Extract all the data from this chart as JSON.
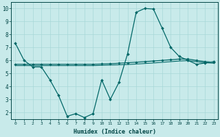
{
  "x": [
    0,
    1,
    2,
    3,
    4,
    5,
    6,
    7,
    8,
    9,
    10,
    11,
    12,
    13,
    14,
    15,
    16,
    17,
    18,
    19,
    20,
    21,
    22,
    23
  ],
  "y_main": [
    7.3,
    6.0,
    5.5,
    5.5,
    4.5,
    3.3,
    1.7,
    1.9,
    1.6,
    1.9,
    4.5,
    3.0,
    4.3,
    6.5,
    9.7,
    10.0,
    9.95,
    8.5,
    7.0,
    6.3,
    6.0,
    5.7,
    5.8,
    5.9
  ],
  "y_line2": [
    5.7,
    5.7,
    5.7,
    5.7,
    5.7,
    5.7,
    5.7,
    5.7,
    5.7,
    5.7,
    5.72,
    5.74,
    5.78,
    5.82,
    5.86,
    5.9,
    5.95,
    6.0,
    6.05,
    6.1,
    6.1,
    6.0,
    5.9,
    5.85
  ],
  "y_line3": [
    5.6,
    5.6,
    5.6,
    5.6,
    5.6,
    5.6,
    5.6,
    5.6,
    5.6,
    5.6,
    5.62,
    5.64,
    5.66,
    5.68,
    5.72,
    5.76,
    5.8,
    5.85,
    5.9,
    5.95,
    5.98,
    5.9,
    5.82,
    5.78
  ],
  "line_color": "#006666",
  "bg_color": "#c8eaea",
  "grid_color": "#a8d8d8",
  "xlabel": "Humidex (Indice chaleur)",
  "xlim": [
    -0.5,
    23.5
  ],
  "ylim": [
    1.5,
    10.5
  ],
  "yticks": [
    2,
    3,
    4,
    5,
    6,
    7,
    8,
    9,
    10
  ],
  "xtick_labels": [
    "0",
    "1",
    "2",
    "3",
    "4",
    "5",
    "6",
    "7",
    "8",
    "9",
    "10",
    "11",
    "12",
    "13",
    "14",
    "15",
    "16",
    "17",
    "18",
    "19",
    "20",
    "21",
    "22",
    "23"
  ]
}
